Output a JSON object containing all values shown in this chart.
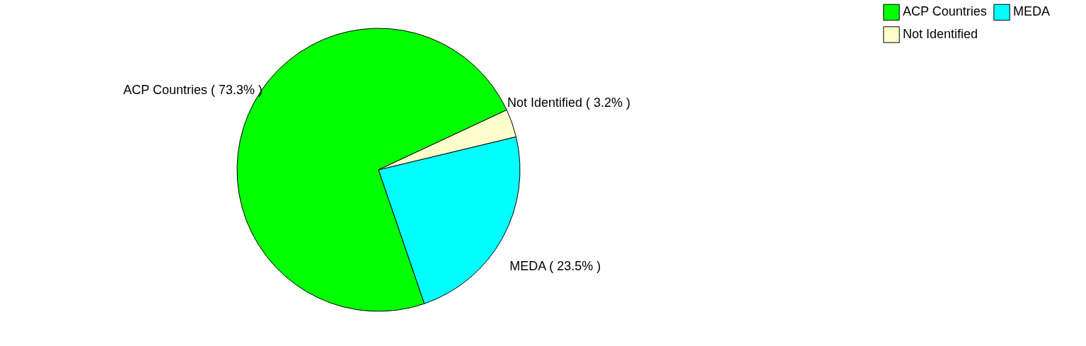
{
  "chart_data": {
    "type": "pie",
    "categories": [
      "ACP Countries",
      "MEDA",
      "Not Identified"
    ],
    "values": [
      73.3,
      23.5,
      3.2
    ],
    "colors": [
      "#00ff00",
      "#00ffff",
      "#ffffcc"
    ],
    "value_labels": [
      "( 73.3% )",
      "( 23.5% )",
      "( 3.2% )"
    ],
    "legend": "top right"
  }
}
